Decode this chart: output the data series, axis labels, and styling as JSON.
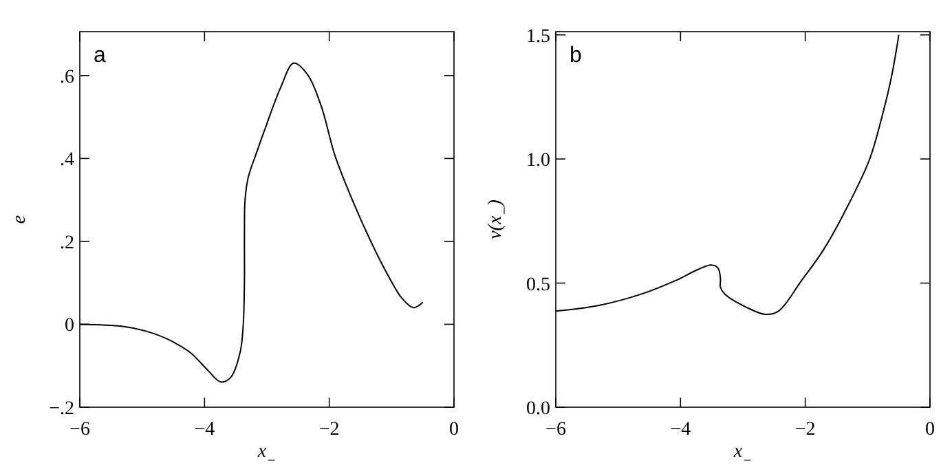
{
  "chart_data": [
    {
      "type": "line",
      "xlabel": "x$_{−}$",
      "ylabel": "e",
      "annotations": [
        "a"
      ],
      "xlim": [
        -6,
        0
      ],
      "ylim": [
        -0.2,
        0.706
      ],
      "xticks": [
        {
          "value": -6,
          "label": "−6"
        },
        {
          "value": -4,
          "label": "−4"
        },
        {
          "value": -2,
          "label": "−2"
        },
        0
      ],
      "yticks": [
        {
          "value": -0.2,
          "label": "−.2"
        },
        0,
        {
          "value": 0.2,
          "label": ".2"
        },
        {
          "value": 0.4,
          "label": ".4"
        },
        {
          "value": 0.6,
          "label": ".6"
        }
      ],
      "series": [
        {
          "color": "#000000",
          "x": [
            -6,
            -5.31,
            -4.95,
            -4.59,
            -4.23,
            -3.94,
            -3.74,
            -3.58,
            -3.43,
            -3.38,
            -3.36,
            -3.36,
            -3.35,
            -3.3,
            -3.18,
            -3.0,
            -2.78,
            -2.57,
            -2.35,
            -2.13,
            -1.91,
            -1.63,
            -1.34,
            -1.05,
            -0.83,
            -0.65,
            -0.5
          ],
          "values": [
            0.0,
            -0.005,
            -0.016,
            -0.036,
            -0.068,
            -0.112,
            -0.139,
            -0.128,
            -0.068,
            -0.003,
            0.105,
            0.213,
            0.3,
            0.354,
            0.408,
            0.484,
            0.571,
            0.63,
            0.603,
            0.527,
            0.408,
            0.3,
            0.202,
            0.116,
            0.062,
            0.04,
            0.053
          ]
        }
      ]
    },
    {
      "type": "line",
      "xlabel": "x$_{−}$",
      "ylabel": "v(x$_{−}$)",
      "annotations": [
        "b"
      ],
      "xlim": [
        -6,
        0
      ],
      "ylim": [
        0,
        1.513
      ],
      "xticks": [
        {
          "value": -6,
          "label": "−6"
        },
        {
          "value": -4,
          "label": "−4"
        },
        {
          "value": -2,
          "label": "−2"
        },
        0
      ],
      "yticks": [
        {
          "value": 0,
          "label": "0.0"
        },
        {
          "value": 0.5,
          "label": "0.5"
        },
        {
          "value": 1,
          "label": "1.0"
        },
        {
          "value": 1.5,
          "label": "1.5"
        }
      ],
      "series": [
        {
          "color": "#000000",
          "x": [
            -6,
            -5.31,
            -4.59,
            -4.08,
            -3.72,
            -3.51,
            -3.4,
            -3.36,
            -3.36,
            -3.29,
            -2.93,
            -2.64,
            -2.43,
            -2.06,
            -1.7,
            -1.34,
            -0.97,
            -0.76,
            -0.61,
            -0.5
          ],
          "values": [
            0.387,
            0.41,
            0.459,
            0.51,
            0.555,
            0.573,
            0.561,
            0.519,
            0.483,
            0.456,
            0.401,
            0.374,
            0.387,
            0.51,
            0.637,
            0.8,
            0.998,
            1.18,
            1.34,
            1.5
          ]
        }
      ]
    }
  ]
}
